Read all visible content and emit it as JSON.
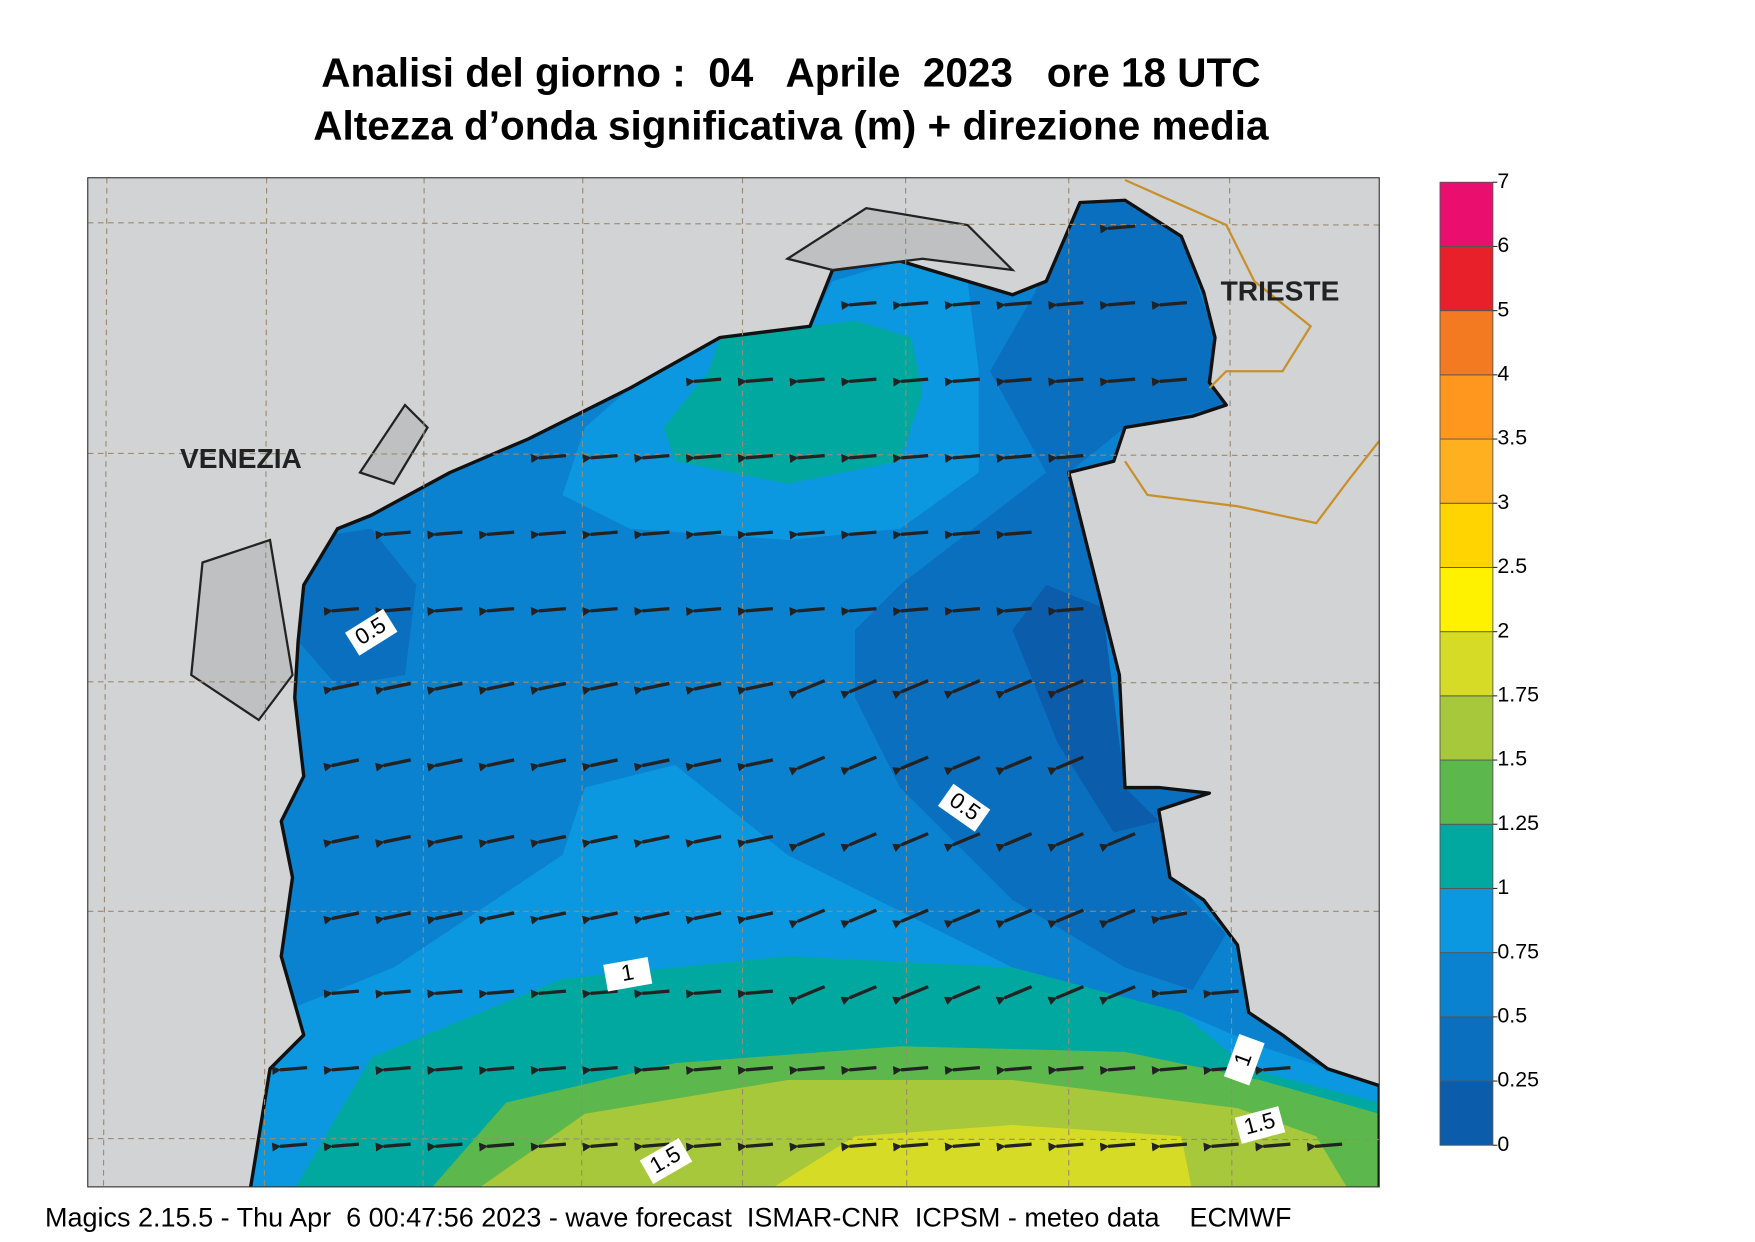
{
  "title": {
    "line1": "Analisi del giorno :  04   Aprile  2023   ore 18 UTC",
    "line2": "Altezza d’onda significativa (m) + direzione media"
  },
  "map": {
    "cities": [
      "VENEZIA",
      "TRIESTE"
    ],
    "contour_labels": [
      "0.5",
      "0.5",
      "1",
      "1",
      "1.5",
      "1.5"
    ]
  },
  "legend": {
    "ticks": [
      0,
      0.25,
      0.5,
      0.75,
      1,
      1.25,
      1.5,
      1.75,
      2,
      2.5,
      3,
      3.5,
      4,
      5,
      6,
      7
    ],
    "colors": [
      "#0b5cab",
      "#0a6fbe",
      "#0a82cf",
      "#0c98e0",
      "#00a8a0",
      "#5cb84c",
      "#a6c83a",
      "#d6dc26",
      "#fff200",
      "#ffd400",
      "#ffb01e",
      "#ff961e",
      "#f47a22",
      "#e8202a",
      "#ea0f6e"
    ]
  },
  "footer": "Magics 2.15.5 - Thu Apr  6 00:47:56 2023 - wave forecast  ISMAR-CNR  ICPSM - meteo data    ECMWF"
}
